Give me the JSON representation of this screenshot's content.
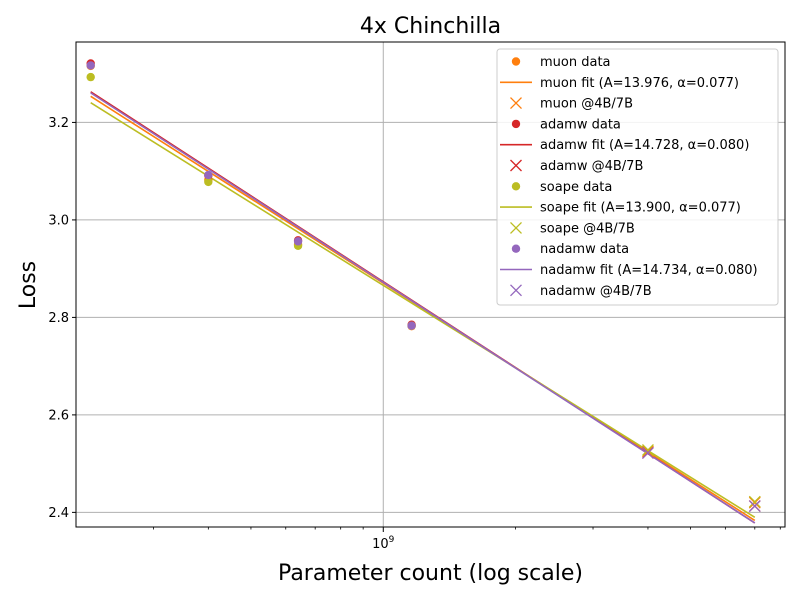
{
  "chart_data": {
    "type": "scatter",
    "title": "4x Chinchilla",
    "xlabel": "Parameter count (log scale)",
    "ylabel": "Loss",
    "xscale": "log",
    "xlim": [
      200000000,
      8200000000
    ],
    "ylim": [
      2.37,
      3.365
    ],
    "grid": true,
    "legend_position": "top-right",
    "x_ticks": [
      {
        "value": 1000000000,
        "base": "10",
        "exp": "9"
      }
    ],
    "y_ticks": [
      "2.4",
      "2.6",
      "2.8",
      "3.0",
      "3.2"
    ],
    "series": [
      {
        "name": "muon",
        "color": "#ff7f0e",
        "data_label": "muon data",
        "fit_label": "muon fit (A=13.976, α=0.077)",
        "pred_label": "muon @4B/7B",
        "data_x": [
          216000000,
          400000000,
          640000000,
          1160000000
        ],
        "data_y": [
          3.316,
          3.082,
          2.95,
          2.782
        ],
        "pred_x": [
          4000000000,
          7000000000
        ],
        "pred_y": [
          2.525,
          2.42
        ],
        "fit_A": 13.976,
        "fit_alpha": 0.077
      },
      {
        "name": "adamw",
        "color": "#d62728",
        "data_label": "adamw data",
        "fit_label": "adamw fit (A=14.728, α=0.080)",
        "pred_label": "adamw @4B/7B",
        "data_x": [
          216000000,
          400000000,
          640000000,
          1160000000
        ],
        "data_y": [
          3.321,
          3.091,
          2.958,
          2.785
        ],
        "pred_x": [
          4000000000,
          7000000000
        ],
        "pred_y": [
          2.522,
          2.413
        ],
        "fit_A": 14.728,
        "fit_alpha": 0.08
      },
      {
        "name": "soape",
        "color": "#bcbd22",
        "data_label": "soape data",
        "fit_label": "soape fit (A=13.900, α=0.077)",
        "pred_label": "soape @4B/7B",
        "data_x": [
          216000000,
          400000000,
          640000000,
          1160000000
        ],
        "data_y": [
          3.293,
          3.078,
          2.947,
          2.783
        ],
        "pred_x": [
          4000000000,
          7000000000
        ],
        "pred_y": [
          2.528,
          2.422
        ],
        "fit_A": 13.9,
        "fit_alpha": 0.077
      },
      {
        "name": "nadamw",
        "color": "#9467bd",
        "data_label": "nadamw data",
        "fit_label": "nadamw fit (A=14.734, α=0.080)",
        "pred_label": "nadamw @4B/7B",
        "data_x": [
          216000000,
          400000000,
          640000000,
          1160000000
        ],
        "data_y": [
          3.317,
          3.092,
          2.956,
          2.783
        ],
        "pred_x": [
          4000000000,
          7000000000
        ],
        "pred_y": [
          2.522,
          2.413
        ],
        "fit_A": 14.734,
        "fit_alpha": 0.08
      }
    ]
  }
}
